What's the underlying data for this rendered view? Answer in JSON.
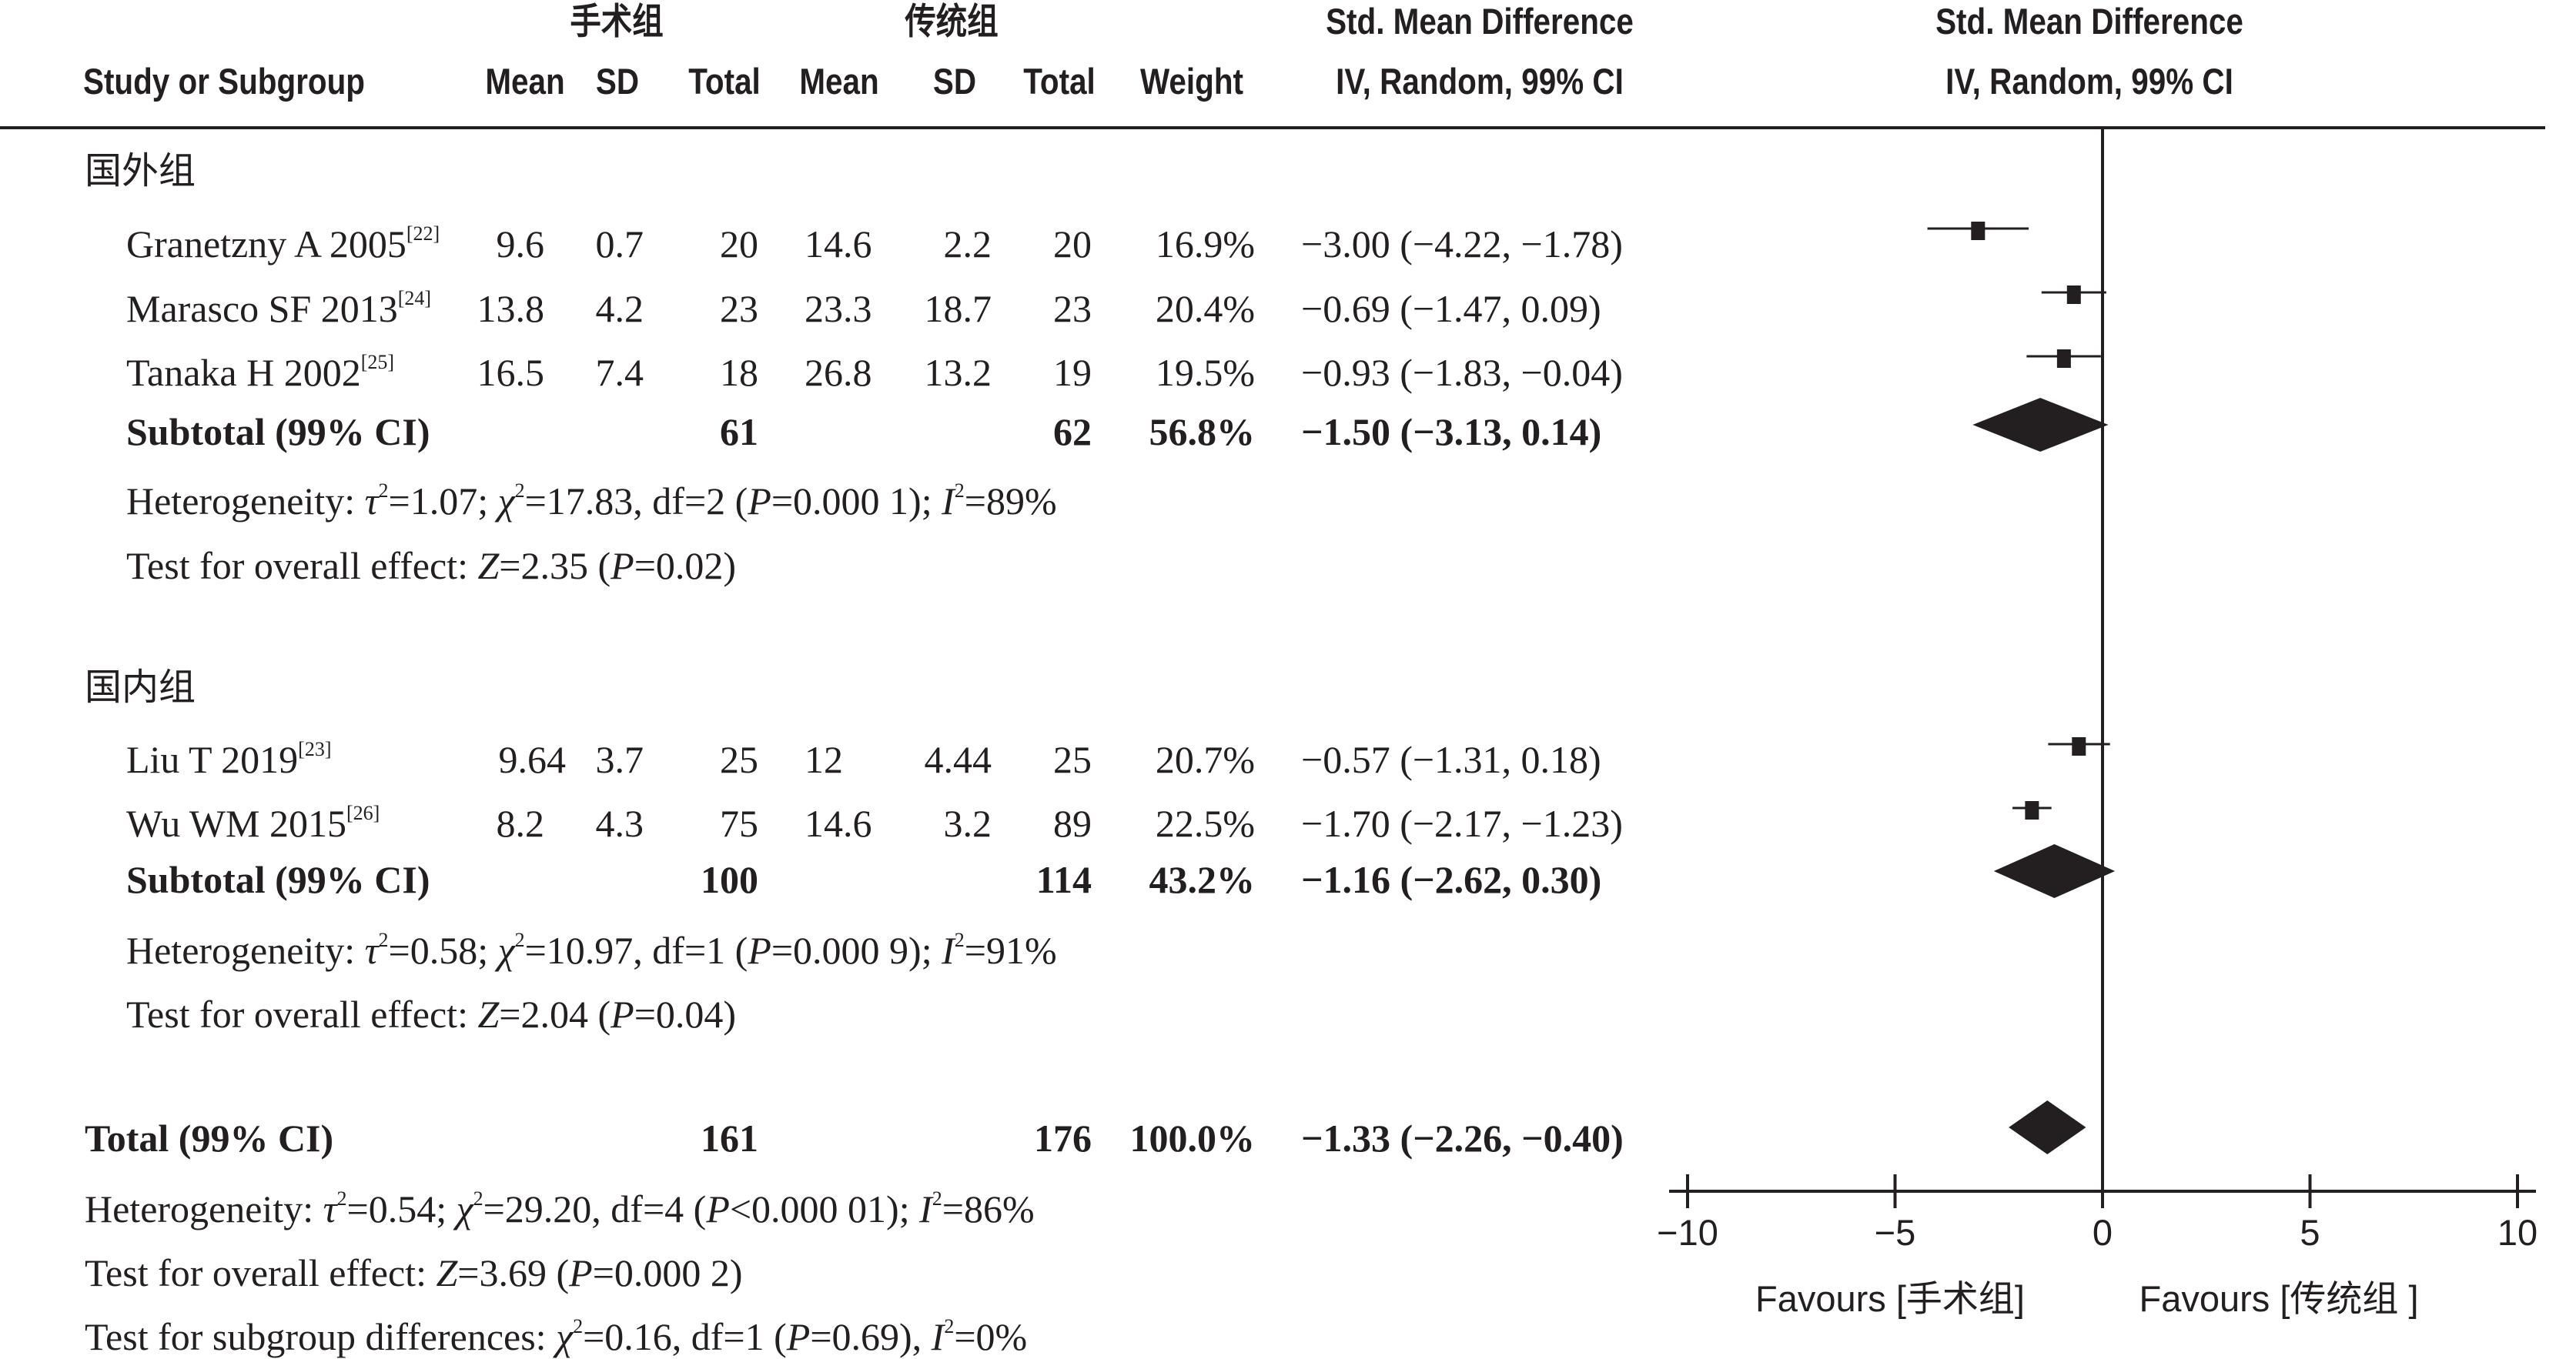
{
  "header": {
    "group1_name": "手术组",
    "group2_name": "传统组",
    "col_study": "Study or Subgroup",
    "col_mean1": "Mean",
    "col_sd1": "SD",
    "col_total1": "Total",
    "col_mean2": "Mean",
    "col_sd2": "SD",
    "col_total2": "Total",
    "col_weight": "Weight",
    "effect_title": "Std. Mean Difference",
    "effect_method": "IV, Random, 99% CI",
    "plot_title": "Std. Mean Difference",
    "plot_method": "IV, Random, 99% CI"
  },
  "subgroups": [
    {
      "name": "国外组",
      "studies": [
        {
          "study": "Granetzny A 2005",
          "ref": "[22]",
          "mean1": "9.6",
          "sd1": "0.7",
          "total1": "20",
          "mean2": "14.6",
          "sd2": "2.2",
          "total2": "20",
          "weight": "16.9%",
          "ci_text": "−3.00 (−4.22, −1.78)"
        },
        {
          "study": "Marasco SF 2013",
          "ref": "[24]",
          "mean1": "13.8",
          "sd1": "4.2",
          "total1": "23",
          "mean2": "23.3",
          "sd2": "18.7",
          "total2": "23",
          "weight": "20.4%",
          "ci_text": "−0.69 (−1.47, 0.09)"
        },
        {
          "study": "Tanaka H 2002",
          "ref": "[25]",
          "mean1": "16.5",
          "sd1": "7.4",
          "total1": "18",
          "mean2": "26.8",
          "sd2": "13.2",
          "total2": "19",
          "weight": "19.5%",
          "ci_text": "−0.93 (−1.83, −0.04)"
        }
      ],
      "subtotal": {
        "label": "Subtotal (99% CI)",
        "total1": "61",
        "total2": "62",
        "weight": "56.8%",
        "ci_text": "−1.50 (−3.13, 0.14)"
      },
      "heterogeneity": {
        "prefix": "Heterogeneity: ",
        "tau_sym": "τ",
        "tau2": "=1.07; ",
        "chi_sym": "χ",
        "chi2": "=17.83, df=2 (",
        "p_sym": "P",
        "p": "=0.000 1); ",
        "i_sym": "I",
        "i2": "=89%"
      },
      "overall": {
        "prefix": "Test for overall effect: ",
        "z_sym": "Z",
        "z": "=2.35 (",
        "p_sym": "P",
        "p": "=0.02)"
      }
    },
    {
      "name": "国内组",
      "studies": [
        {
          "study": "Liu T 2019",
          "ref": "[23]",
          "mean1": "9.64",
          "sd1": "3.7",
          "total1": "25",
          "mean2": "12",
          "sd2": "4.44",
          "total2": "25",
          "weight": "20.7%",
          "ci_text": "−0.57 (−1.31, 0.18)"
        },
        {
          "study": "Wu WM 2015",
          "ref": "[26]",
          "mean1": "8.2",
          "sd1": "4.3",
          "total1": "75",
          "mean2": "14.6",
          "sd2": "3.2",
          "total2": "89",
          "weight": "22.5%",
          "ci_text": "−1.70 (−2.17, −1.23)"
        }
      ],
      "subtotal": {
        "label": "Subtotal (99% CI)",
        "total1": "100",
        "total2": "114",
        "weight": "43.2%",
        "ci_text": "−1.16 (−2.62, 0.30)"
      },
      "heterogeneity": {
        "prefix": "Heterogeneity: ",
        "tau_sym": "τ",
        "tau2": "=0.58; ",
        "chi_sym": "χ",
        "chi2": "=10.97, df=1 (",
        "p_sym": "P",
        "p": "=0.000 9); ",
        "i_sym": "I",
        "i2": "=91%"
      },
      "overall": {
        "prefix": "Test for overall effect: ",
        "z_sym": "Z",
        "z": "=2.04 (",
        "p_sym": "P",
        "p": "=0.04)"
      }
    }
  ],
  "total": {
    "label": "Total (99% CI)",
    "total1": "161",
    "total2": "176",
    "weight": "100.0%",
    "ci_text": "−1.33 (−2.26, −0.40)",
    "heterogeneity": {
      "prefix": "Heterogeneity: ",
      "tau_sym": "τ",
      "tau2": "=0.54; ",
      "chi_sym": "χ",
      "chi2": "=29.20, df=4 (",
      "p_sym": "P",
      "p": "<0.000 01); ",
      "i_sym": "I",
      "i2": "=86%"
    },
    "overall": {
      "prefix": "Test for overall effect: ",
      "z_sym": "Z",
      "z": "=3.69 (",
      "p_sym": "P",
      "p": "=0.000 2)"
    },
    "subgroup_diff": {
      "prefix": "Test for subgroup differences: ",
      "chi_sym": "χ",
      "chi2": "=0.16, df=1 (",
      "p_sym": "P",
      "p": "=0.69), ",
      "i_sym": "I",
      "i2": "=0%"
    }
  },
  "axis": {
    "favours_left": "Favours [手术组]",
    "favours_right": "Favours [传统组 ]"
  },
  "chart_data": {
    "type": "forest",
    "xlim": [
      -10,
      10
    ],
    "xticks": [
      -10,
      -5,
      0,
      5,
      10
    ],
    "xtick_labels": [
      "−10",
      "−5",
      "0",
      "5",
      "10"
    ],
    "series": [
      {
        "name": "Granetzny A 2005",
        "est": -3.0,
        "lo": -4.22,
        "hi": -1.78,
        "kind": "study"
      },
      {
        "name": "Marasco SF 2013",
        "est": -0.69,
        "lo": -1.47,
        "hi": 0.09,
        "kind": "study"
      },
      {
        "name": "Tanaka H 2002",
        "est": -0.93,
        "lo": -1.83,
        "hi": -0.04,
        "kind": "study"
      },
      {
        "name": "Subtotal (99% CI)",
        "est": -1.5,
        "lo": -3.13,
        "hi": 0.14,
        "kind": "diamond"
      },
      {
        "name": "Liu T 2019",
        "est": -0.57,
        "lo": -1.31,
        "hi": 0.18,
        "kind": "study"
      },
      {
        "name": "Wu WM 2015",
        "est": -1.7,
        "lo": -2.17,
        "hi": -1.23,
        "kind": "study"
      },
      {
        "name": "Subtotal (99% CI)",
        "est": -1.16,
        "lo": -2.62,
        "hi": 0.3,
        "kind": "diamond"
      },
      {
        "name": "Total (99% CI)",
        "est": -1.33,
        "lo": -2.26,
        "hi": -0.4,
        "kind": "diamond"
      }
    ]
  }
}
